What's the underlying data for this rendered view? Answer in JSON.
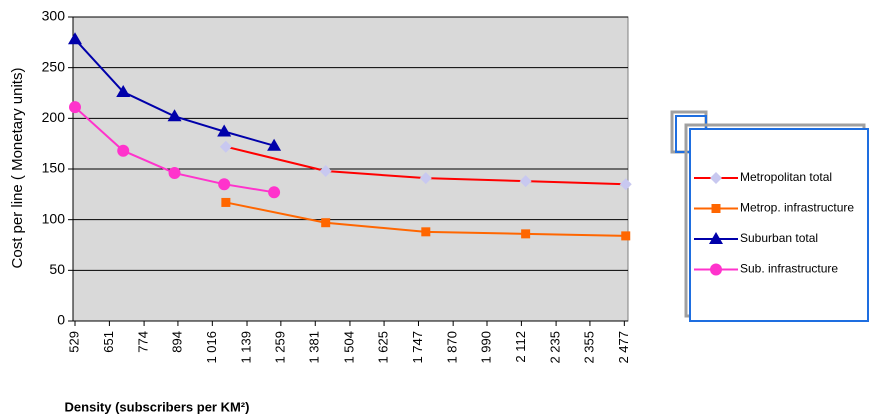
{
  "chart_data": {
    "type": "line",
    "xlabel": "Density (subscribers per KM²)",
    "ylabel": "Cost per line ( Monetary units)",
    "xlim": [
      529,
      2490
    ],
    "ylim": [
      0,
      300
    ],
    "xticks": [
      529,
      651,
      774,
      894,
      {
        "value": 1016,
        "label": "1 016"
      },
      {
        "value": 1139,
        "label": "1 139"
      },
      {
        "value": 1259,
        "label": "1 259"
      },
      {
        "value": 1381,
        "label": "1 381"
      },
      {
        "value": 1504,
        "label": "1 504"
      },
      {
        "value": 1625,
        "label": "1 625"
      },
      {
        "value": 1747,
        "label": "1 747"
      },
      {
        "value": 1870,
        "label": "1 870"
      },
      {
        "value": 1990,
        "label": "1 990"
      },
      {
        "value": 2112,
        "label": "2 112"
      },
      {
        "value": 2235,
        "label": "2 235"
      },
      {
        "value": 2355,
        "label": "2 355"
      },
      {
        "value": 2477,
        "label": "2 477"
      }
    ],
    "yticks": [
      0,
      50,
      100,
      150,
      200,
      250,
      300
    ],
    "grid": true,
    "legend": "right",
    "series": [
      {
        "name": "Metropolitan total",
        "color": "#ff0000",
        "marker": "diamond",
        "marker_color": "#c8c8f0",
        "x": [
          1064,
          1418,
          1773,
          2127,
          2482
        ],
        "values": [
          172,
          148,
          141,
          138,
          135
        ]
      },
      {
        "name": "Metrop. infrastructure",
        "color": "#ff6600",
        "marker": "square",
        "marker_color": "#ff6600",
        "x": [
          1064,
          1418,
          1773,
          2127,
          2482
        ],
        "values": [
          117,
          97,
          88,
          86,
          84
        ]
      },
      {
        "name": "Suburban  total",
        "color": "#0000aa",
        "marker": "triangle",
        "marker_color": "#0000aa",
        "x": [
          529,
          700,
          882,
          1058,
          1235
        ],
        "values": [
          278,
          226,
          202,
          187,
          173
        ]
      },
      {
        "name": "Sub.  infrastructure",
        "color": "#ff33cc",
        "marker": "circle",
        "marker_color": "#ff33cc",
        "x": [
          529,
          700,
          882,
          1058,
          1235
        ],
        "values": [
          211,
          168,
          146,
          135,
          127
        ]
      }
    ]
  }
}
